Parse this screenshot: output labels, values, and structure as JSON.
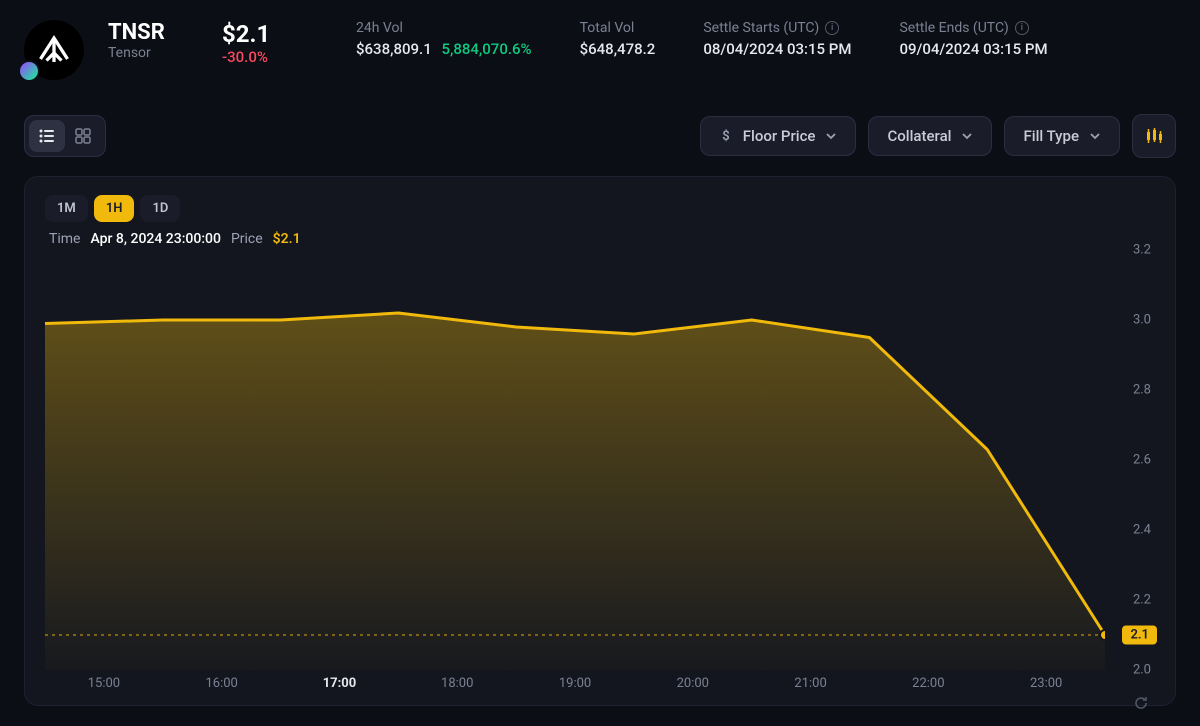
{
  "token": {
    "symbol": "TNSR",
    "name": "Tensor"
  },
  "price": {
    "value": "$2.1",
    "change": "-30.0%",
    "change_color": "#f84960"
  },
  "stats": {
    "vol24h_label": "24h Vol",
    "vol24h_value": "$638,809.1",
    "vol24h_pct": "5,884,070.6%",
    "vol24h_pct_color": "#0ecb81",
    "totalvol_label": "Total Vol",
    "totalvol_value": "$648,478.2",
    "settle_start_label": "Settle Starts (UTC)",
    "settle_start_value": "08/04/2024 03:15 PM",
    "settle_end_label": "Settle Ends (UTC)",
    "settle_end_value": "09/04/2024 03:15 PM"
  },
  "filters": {
    "floor": "Floor Price",
    "collateral": "Collateral",
    "fill": "Fill Type"
  },
  "timeframes": {
    "items": [
      "1M",
      "1H",
      "1D"
    ],
    "active": "1H"
  },
  "tooltip": {
    "time_label": "Time",
    "time_value": "Apr 8, 2024 23:00:00",
    "price_label": "Price",
    "price_value": "$2.1"
  },
  "colors": {
    "line": "#f0b90b",
    "area_top": "rgba(240,185,11,0.35)",
    "area_bottom": "rgba(240,185,11,0.02)",
    "bg": "#13161f",
    "baseline": "#f0b90b"
  },
  "chart": {
    "type": "area",
    "ylim": [
      2.0,
      3.2
    ],
    "yticks": [
      3.2,
      3.0,
      2.8,
      2.6,
      2.4,
      2.2,
      2.0
    ],
    "current_y": 2.1,
    "current_y_label": "2.1",
    "xticks": [
      "15:00",
      "16:00",
      "17:00",
      "18:00",
      "19:00",
      "20:00",
      "21:00",
      "22:00",
      "23:00"
    ],
    "xtick_bold_index": 2,
    "series": [
      {
        "x": "14:30",
        "y": 2.99
      },
      {
        "x": "15:00",
        "y": 3.0
      },
      {
        "x": "16:00",
        "y": 3.0
      },
      {
        "x": "17:00",
        "y": 3.02
      },
      {
        "x": "18:00",
        "y": 2.98
      },
      {
        "x": "19:00",
        "y": 2.96
      },
      {
        "x": "20:00",
        "y": 3.0
      },
      {
        "x": "21:00",
        "y": 2.95
      },
      {
        "x": "22:00",
        "y": 2.63
      },
      {
        "x": "23:00",
        "y": 2.1
      }
    ],
    "line_width": 3,
    "marker_radius": 5
  }
}
